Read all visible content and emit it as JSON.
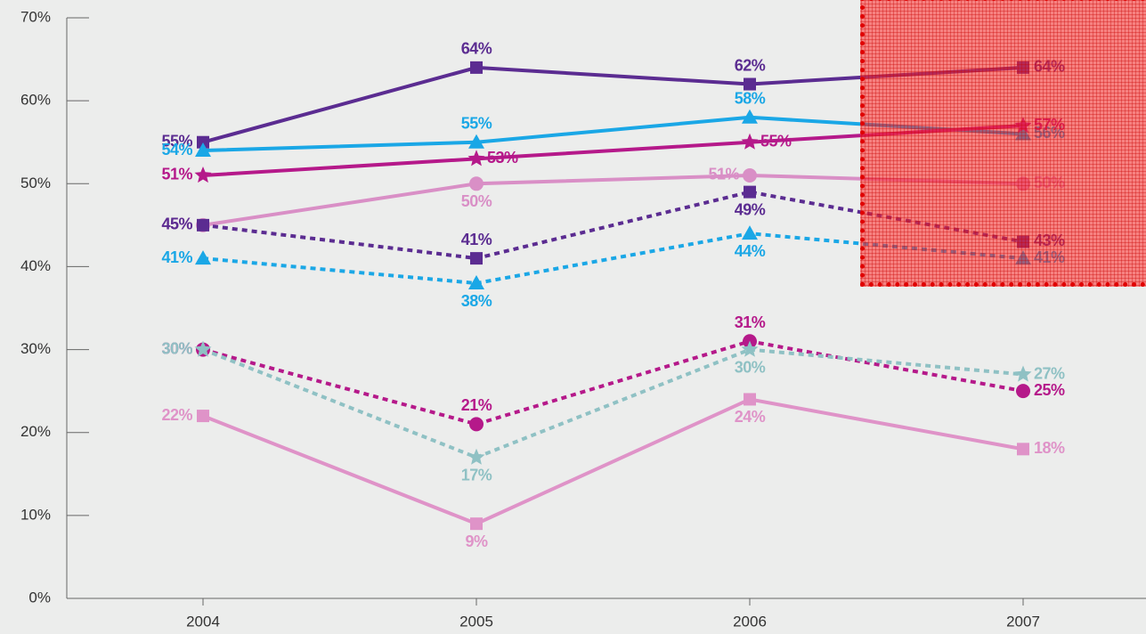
{
  "chart_data": {
    "type": "line",
    "categories": [
      "2004",
      "2005",
      "2006",
      "2007"
    ],
    "ylim": [
      0,
      70
    ],
    "yticks": [
      {
        "value": 0,
        "label": "0%"
      },
      {
        "value": 10,
        "label": "10%"
      },
      {
        "value": 20,
        "label": "20%"
      },
      {
        "value": 30,
        "label": "30%"
      },
      {
        "value": 40,
        "label": "40%"
      },
      {
        "value": 50,
        "label": "50%"
      },
      {
        "value": 60,
        "label": "60%"
      },
      {
        "value": 70,
        "label": "70%"
      }
    ],
    "series": [
      {
        "color": "#5b2c91",
        "marker": "square",
        "dash": "solid",
        "values": [
          55,
          64,
          62,
          64
        ],
        "value_labels": [
          "55%",
          "64%",
          "62%",
          "64%"
        ]
      },
      {
        "color": "#1aa7e6",
        "marker": "triangle",
        "dash": "solid",
        "values": [
          54,
          55,
          58,
          56
        ],
        "value_labels": [
          "54%",
          "55%",
          "58%",
          "56%"
        ]
      },
      {
        "color": "#b5198a",
        "marker": "star",
        "dash": "solid",
        "values": [
          51,
          53,
          55,
          57
        ],
        "value_labels": [
          "51%",
          "53%",
          "55%",
          "57%"
        ]
      },
      {
        "color": "#d98fc6",
        "marker": "circle",
        "dash": "solid",
        "values": [
          45,
          50,
          51,
          50
        ],
        "value_labels": [
          "45%",
          "50%",
          "51%",
          "50%"
        ]
      },
      {
        "color": "#5b2c91",
        "marker": "square",
        "dash": "dotted",
        "values": [
          45,
          41,
          49,
          43
        ],
        "value_labels": [
          "45%",
          "41%",
          "49%",
          "43%"
        ]
      },
      {
        "color": "#1aa7e6",
        "marker": "triangle",
        "dash": "dotted",
        "values": [
          41,
          38,
          44,
          41
        ],
        "value_labels": [
          "41%",
          "38%",
          "44%",
          "41%"
        ]
      },
      {
        "color": "#b5198a",
        "marker": "circle",
        "dash": "dotted",
        "values": [
          30,
          21,
          31,
          25
        ],
        "value_labels": [
          "30%",
          "21%",
          "31%",
          "25%"
        ]
      },
      {
        "color": "#8fc1c4",
        "marker": "star",
        "dash": "dotted",
        "values": [
          30,
          17,
          30,
          27
        ],
        "value_labels": [
          "30%",
          "17%",
          "30%",
          "27%"
        ]
      },
      {
        "color": "#df93c8",
        "marker": "square",
        "dash": "solid",
        "values": [
          22,
          9,
          24,
          18
        ],
        "value_labels": [
          "22%",
          "9%",
          "24%",
          "18%"
        ]
      }
    ]
  }
}
